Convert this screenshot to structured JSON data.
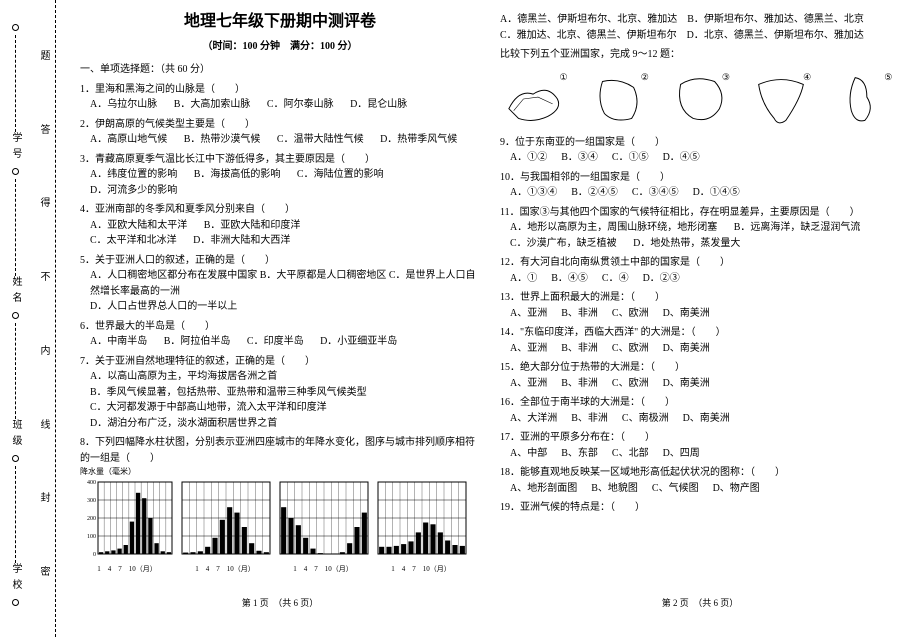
{
  "title": "地理七年级下册期中测评卷",
  "subtitle": "（时间：100 分钟　满分：100 分）",
  "section1": "一、单项选择题：（共 60 分）",
  "binding_labels_inner": [
    "密",
    "封",
    "线",
    "内",
    "不",
    "得",
    "答",
    "题"
  ],
  "binding_labels_outer": [
    "学校",
    "班级",
    "姓名",
    "学号"
  ],
  "q1": {
    "stem": "1．里海和黑海之间的山脉是（　　）",
    "opts": [
      "A．乌拉尔山脉",
      "B．大高加索山脉",
      "C．阿尔泰山脉",
      "D．昆仑山脉"
    ]
  },
  "q2": {
    "stem": "2．伊朗高原的气候类型主要是（　　）",
    "opts": [
      "A．高原山地气候",
      "B．热带沙漠气候",
      "C．温带大陆性气候",
      "D．热带季风气候"
    ]
  },
  "q3": {
    "stem": "3．青藏高原夏季气温比长江中下游低得多，其主要原因是（　　）",
    "opts": [
      "A．纬度位置的影响",
      "B．海拔高低的影响",
      "C．海陆位置的影响",
      "D．河流多少的影响"
    ]
  },
  "q4": {
    "stem": "4．亚洲南部的冬季风和夏季风分别来自（　　）",
    "opts": [
      "A．亚欧大陆和太平洋",
      "B．亚欧大陆和印度洋",
      "C．太平洋和北冰洋",
      "D．非洲大陆和大西洋"
    ]
  },
  "q5": {
    "stem": "5．关于亚洲人口的叙述，正确的是（　　）",
    "opts": [
      "A．人口稠密地区都分布在发展中国家 B．大平原都是人口稠密地区 C．是世界上人口自然增长率最高的一洲",
      "D．人口占世界总人口的一半以上"
    ]
  },
  "q6": {
    "stem": "6．世界最大的半岛是（　　）",
    "opts": [
      "A．中南半岛",
      "B．阿拉伯半岛",
      "C．印度半岛",
      "D．小亚细亚半岛"
    ]
  },
  "q7": {
    "stem": "7．关于亚洲自然地理特征的叙述，正确的是（　　）",
    "opts": [
      "A．以高山高原为主，平均海拔居各洲之首",
      "B．季风气候显著，包括热带、亚热带和温带三种季风气候类型",
      "C．大河都发源于中部高山地带，流入太平洋和印度洋",
      "D．湖泊分布广泛，淡水湖面积居世界之首"
    ]
  },
  "q8": {
    "stem": "8．下列四幅降水柱状图，分别表示亚洲四座城市的年降水变化，图序与城市排列顺序相符的一组是（　　）"
  },
  "chart_axis_label": "降水量（毫米）",
  "chart_yticks": [
    "400",
    "300",
    "200",
    "100",
    "0"
  ],
  "chart_xlabel": "1　4　7　10（月）",
  "charts": [
    {
      "bars": [
        10,
        15,
        20,
        30,
        50,
        180,
        340,
        310,
        200,
        60,
        15,
        10
      ]
    },
    {
      "bars": [
        8,
        10,
        15,
        40,
        90,
        190,
        260,
        230,
        150,
        60,
        18,
        10
      ]
    },
    {
      "bars": [
        260,
        200,
        160,
        90,
        30,
        5,
        2,
        3,
        10,
        60,
        150,
        230
      ]
    },
    {
      "bars": [
        40,
        40,
        45,
        55,
        70,
        120,
        175,
        165,
        120,
        75,
        50,
        45
      ]
    }
  ],
  "chart_ymax": 400,
  "q8opts_line": "A．德黑兰、伊斯坦布尔、北京、雅加达　B．伊斯坦布尔、雅加达、德黑兰、北京",
  "q8opts_line2": "C．雅加达、北京、德黑兰、伊斯坦布尔　D．北京、德黑兰、伊斯坦布尔、雅加达",
  "stem_maps": "比较下列五个亚洲国家，完成 9～12 题：",
  "map_nums": [
    "①",
    "②",
    "③",
    "④",
    "⑤"
  ],
  "q9": {
    "stem": "9．位于东南亚的一组国家是（　　）",
    "opts": [
      "A．①②",
      "B．③④",
      "C．①⑤",
      "D．④⑤"
    ]
  },
  "q10": {
    "stem": "10．与我国相邻的一组国家是（　　）",
    "opts": [
      "A．①③④",
      "B．②④⑤",
      "C．③④⑤",
      "D．①④⑤"
    ]
  },
  "q11": {
    "stem": "11．国家③与其他四个国家的气候特征相比，存在明显差异，主要原因是（　　）",
    "opts": [
      "A．地形以高原为主，周围山脉环绕，地形闭塞",
      "B．远离海洋，缺乏湿润气流",
      "C．沙漠广布，缺乏植被",
      "D．地处热带，蒸发量大"
    ]
  },
  "q12": {
    "stem": "12．有大河自北向南纵贯领土中部的国家是（　　）",
    "opts": [
      "A．①",
      "B．④⑤",
      "C．④",
      "D．②③"
    ]
  },
  "q13": {
    "stem": "13．世界上面积最大的洲是：（　　）",
    "opts": [
      "A、亚洲",
      "B、非洲",
      "C、欧洲",
      "D、南美洲"
    ]
  },
  "q14": {
    "stem": "14．\"东临印度洋，西临大西洋\" 的大洲是：（　　）",
    "opts": [
      "A、亚洲",
      "B、非洲",
      "C、欧洲",
      "D、南美洲"
    ]
  },
  "q15": {
    "stem": "15．绝大部分位于热带的大洲是：（　　）",
    "opts": [
      "A、亚洲",
      "B、非洲",
      "C、欧洲",
      "D、南美洲"
    ]
  },
  "q16": {
    "stem": "16．全部位于南半球的大洲是：（　　）",
    "opts": [
      "A、大洋洲",
      "B、非洲",
      "C、南极洲",
      "D、南美洲"
    ]
  },
  "q17": {
    "stem": "17．亚洲的平原多分布在：（　　）",
    "opts": [
      "A、中部",
      "B、东部",
      "C、北部",
      "D、四周"
    ]
  },
  "q18": {
    "stem": "18．能够直观地反映某一区域地形高低起伏状况的图称：（　　）",
    "opts": [
      "A、地形剖面图",
      "B、地貌图",
      "C、气候图",
      "D、物产图"
    ]
  },
  "q19": {
    "stem": "19．亚洲气候的特点是：（　　）"
  },
  "pagenum1": "第 1 页　（共 6 页）",
  "pagenum2": "第 2 页　（共 6 页）",
  "colors": {
    "ink": "#000000",
    "bg": "#ffffff"
  }
}
